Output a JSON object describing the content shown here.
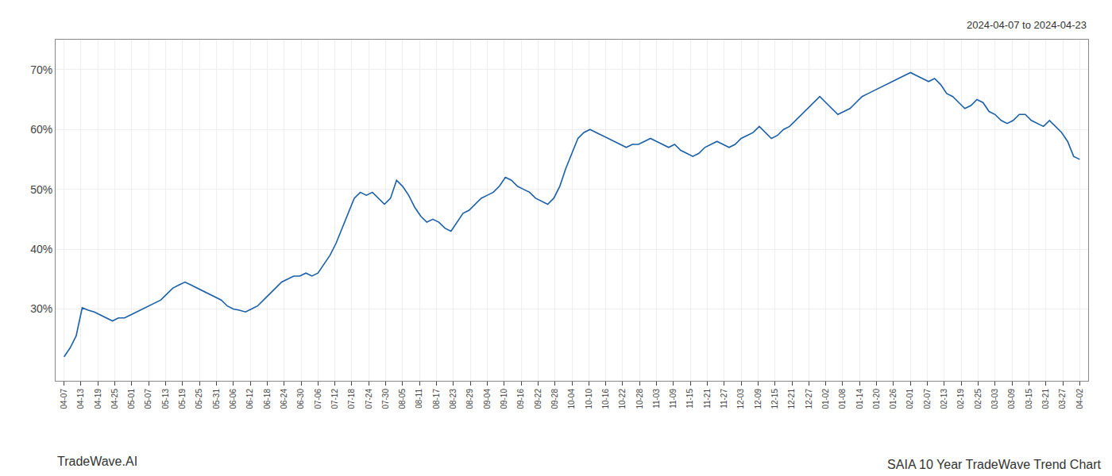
{
  "chart_data": {
    "type": "line",
    "title": "SAIA 10 Year TradeWave Trend Chart",
    "subtitle": "2024-04-07 to 2024-04-23",
    "annotations": [
      "TradeWave.AI"
    ],
    "color": "#1a5fa8",
    "grid": true,
    "x": [
      0,
      5,
      10,
      15,
      20,
      25,
      30,
      35,
      40,
      45,
      50,
      55,
      60,
      65,
      70,
      75,
      80,
      85,
      90,
      95,
      100,
      105,
      110,
      115,
      120,
      125,
      130,
      135,
      140,
      145,
      150,
      155,
      160,
      165,
      170,
      175,
      180,
      185,
      190,
      195,
      200,
      205,
      210,
      215,
      220,
      225,
      230,
      235,
      240,
      245,
      250,
      255,
      260,
      265,
      270,
      275,
      280,
      285,
      290,
      295,
      300,
      305,
      310,
      315,
      320,
      325,
      330,
      335,
      340,
      345,
      350,
      355,
      360,
      365,
      370,
      375,
      380,
      385,
      390,
      395,
      400,
      405,
      410,
      415,
      420,
      425,
      430,
      435,
      440,
      445,
      450,
      455,
      460,
      465,
      470,
      475,
      480,
      485,
      490,
      495,
      500,
      505,
      510,
      515,
      520,
      525,
      530,
      535,
      540,
      545,
      550,
      555,
      560,
      565,
      570,
      575,
      580,
      585,
      590,
      595,
      600,
      605,
      610,
      615,
      620,
      625,
      630,
      635,
      640,
      645,
      650,
      655,
      660,
      665,
      670,
      675,
      680,
      685,
      690,
      695,
      700,
      705,
      710,
      715,
      720,
      725,
      730,
      735,
      740,
      745,
      750,
      755,
      760,
      765,
      770,
      775,
      780,
      785,
      790,
      795,
      800,
      805,
      810,
      815,
      820,
      825,
      830,
      835,
      840
    ],
    "values": [
      22.0,
      23.5,
      25.5,
      30.2,
      29.8,
      29.5,
      29.0,
      28.5,
      28.0,
      28.5,
      28.5,
      29.0,
      29.5,
      30.0,
      30.5,
      31.0,
      31.5,
      32.5,
      33.5,
      34.0,
      34.5,
      34.0,
      33.5,
      33.0,
      32.5,
      32.0,
      31.5,
      30.5,
      30.0,
      29.8,
      29.5,
      30.0,
      30.5,
      31.5,
      32.5,
      33.5,
      34.5,
      35.0,
      35.5,
      35.5,
      36.0,
      35.5,
      36.0,
      37.5,
      39.0,
      41.0,
      43.5,
      46.0,
      48.5,
      49.5,
      49.0,
      49.5,
      48.5,
      47.5,
      48.5,
      51.5,
      50.5,
      49.0,
      47.0,
      45.5,
      44.5,
      45.0,
      44.5,
      43.5,
      43.0,
      44.5,
      46.0,
      46.5,
      47.5,
      48.5,
      49.0,
      49.5,
      50.5,
      52.0,
      51.5,
      50.5,
      50.0,
      49.5,
      48.5,
      48.0,
      47.5,
      48.5,
      50.5,
      53.5,
      56.0,
      58.5,
      59.5,
      60.0,
      59.5,
      59.0,
      58.5,
      58.0,
      57.5,
      57.0,
      57.5,
      57.5,
      58.0,
      58.5,
      58.0,
      57.5,
      57.0,
      57.5,
      56.5,
      56.0,
      55.5,
      56.0,
      57.0,
      57.5,
      58.0,
      57.5,
      57.0,
      57.5,
      58.5,
      59.0,
      59.5,
      60.5,
      59.5,
      58.5,
      59.0,
      60.0,
      60.5,
      61.5,
      62.5,
      63.5,
      64.5,
      65.5,
      64.5,
      63.5,
      62.5,
      63.0,
      63.5,
      64.5,
      65.5,
      66.0,
      66.5,
      67.0,
      67.5,
      68.0,
      68.5,
      69.0,
      69.5,
      69.0,
      68.5,
      68.0,
      68.5,
      67.5,
      66.0,
      65.5,
      64.5,
      63.5,
      64.0,
      65.0,
      64.5,
      63.0,
      62.5,
      61.5,
      61.0,
      61.5,
      62.5,
      62.5,
      61.5,
      61.0,
      60.5,
      61.5,
      60.5,
      59.5,
      58.0,
      55.5,
      55.0
    ],
    "xlim": [
      -7,
      847
    ],
    "xticks": [
      {
        "value": 0,
        "label": "04-07"
      },
      {
        "value": 14,
        "label": "04-13"
      },
      {
        "value": 28,
        "label": "04-19"
      },
      {
        "value": 42,
        "label": "04-25"
      },
      {
        "value": 56,
        "label": "05-01"
      },
      {
        "value": 70,
        "label": "05-07"
      },
      {
        "value": 84,
        "label": "05-13"
      },
      {
        "value": 98,
        "label": "05-19"
      },
      {
        "value": 112,
        "label": "05-25"
      },
      {
        "value": 126,
        "label": "05-31"
      },
      {
        "value": 140,
        "label": "06-06"
      },
      {
        "value": 154,
        "label": "06-12"
      },
      {
        "value": 168,
        "label": "06-18"
      },
      {
        "value": 182,
        "label": "06-24"
      },
      {
        "value": 196,
        "label": "06-30"
      },
      {
        "value": 210,
        "label": "07-06"
      },
      {
        "value": 224,
        "label": "07-12"
      },
      {
        "value": 238,
        "label": "07-18"
      },
      {
        "value": 252,
        "label": "07-24"
      },
      {
        "value": 266,
        "label": "07-30"
      },
      {
        "value": 280,
        "label": "08-05"
      },
      {
        "value": 294,
        "label": "08-11"
      },
      {
        "value": 308,
        "label": "08-17"
      },
      {
        "value": 322,
        "label": "08-23"
      },
      {
        "value": 336,
        "label": "08-29"
      },
      {
        "value": 350,
        "label": "09-04"
      },
      {
        "value": 364,
        "label": "09-10"
      },
      {
        "value": 378,
        "label": "09-16"
      },
      {
        "value": 392,
        "label": "09-22"
      },
      {
        "value": 406,
        "label": "09-28"
      },
      {
        "value": 420,
        "label": "10-04"
      },
      {
        "value": 434,
        "label": "10-10"
      },
      {
        "value": 448,
        "label": "10-16"
      },
      {
        "value": 462,
        "label": "10-22"
      },
      {
        "value": 476,
        "label": "10-28"
      },
      {
        "value": 490,
        "label": "11-03"
      },
      {
        "value": 504,
        "label": "11-09"
      },
      {
        "value": 518,
        "label": "11-15"
      },
      {
        "value": 532,
        "label": "11-21"
      },
      {
        "value": 546,
        "label": "11-27"
      },
      {
        "value": 560,
        "label": "12-03"
      },
      {
        "value": 574,
        "label": "12-09"
      },
      {
        "value": 588,
        "label": "12-15"
      },
      {
        "value": 602,
        "label": "12-21"
      },
      {
        "value": 616,
        "label": "12-27"
      },
      {
        "value": 630,
        "label": "01-02"
      },
      {
        "value": 644,
        "label": "01-08"
      },
      {
        "value": 658,
        "label": "01-14"
      },
      {
        "value": 672,
        "label": "01-20"
      },
      {
        "value": 686,
        "label": "01-26"
      },
      {
        "value": 700,
        "label": "02-01"
      },
      {
        "value": 714,
        "label": "02-07"
      },
      {
        "value": 728,
        "label": "02-13"
      },
      {
        "value": 742,
        "label": "02-19"
      },
      {
        "value": 756,
        "label": "02-25"
      },
      {
        "value": 770,
        "label": "03-03"
      },
      {
        "value": 784,
        "label": "03-09"
      },
      {
        "value": 798,
        "label": "03-15"
      },
      {
        "value": 812,
        "label": "03-21"
      },
      {
        "value": 826,
        "label": "03-27"
      },
      {
        "value": 840,
        "label": "04-02"
      }
    ],
    "ylim": [
      18,
      75
    ],
    "yticks": [
      {
        "value": 30,
        "label": "30%"
      },
      {
        "value": 40,
        "label": "40%"
      },
      {
        "value": 50,
        "label": "50%"
      },
      {
        "value": 60,
        "label": "60%"
      },
      {
        "value": 70,
        "label": "70%"
      }
    ]
  }
}
